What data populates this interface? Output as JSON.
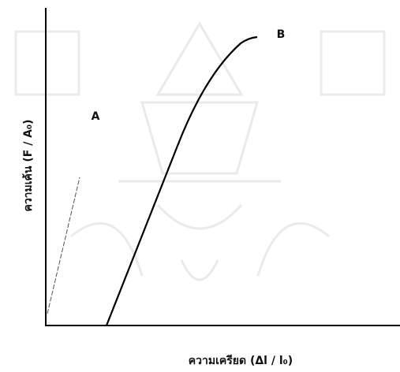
{
  "axes": {
    "y_label": "ความเค้น (F / A₀)",
    "x_label": "ความเครียด (Δl / l₀)"
  },
  "curves": [
    {
      "label": "A"
    },
    {
      "label": "B"
    }
  ]
}
